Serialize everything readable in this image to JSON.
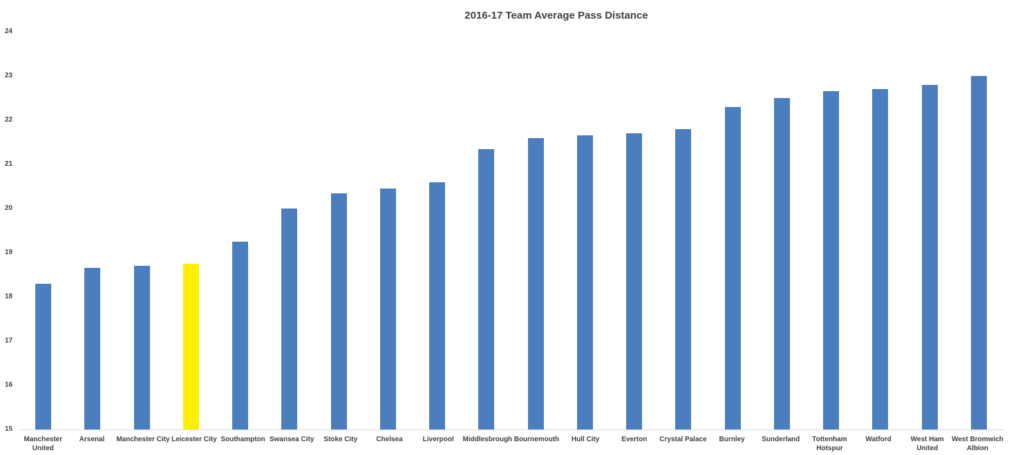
{
  "chart_data": {
    "type": "bar",
    "title": "2016-17 Team Average Pass Distance",
    "xlabel": "",
    "ylabel": "",
    "ylim": [
      15,
      24
    ],
    "yticks": [
      15,
      16,
      17,
      18,
      19,
      20,
      21,
      22,
      23,
      24
    ],
    "grid": false,
    "legend": false,
    "categories": [
      "Manchester\nUnited",
      "Arsenal",
      "Manchester City",
      "Leicester City",
      "Southampton",
      "Swansea City",
      "Stoke City",
      "Chelsea",
      "Liverpool",
      "Middlesbrough",
      "Bournemouth",
      "Hull City",
      "Everton",
      "Crystal Palace",
      "Burnley",
      "Sunderland",
      "Tottenham\nHotspur",
      "Watford",
      "West Ham\nUnited",
      "West Bromwich\nAlbion"
    ],
    "values": [
      18.3,
      18.65,
      18.7,
      18.75,
      19.25,
      20.0,
      20.35,
      20.45,
      20.6,
      21.35,
      21.6,
      21.65,
      21.7,
      21.8,
      22.3,
      22.5,
      22.65,
      22.7,
      22.8,
      23.0
    ],
    "highlighted_category": "Leicester City",
    "highlight_index": 3,
    "colors": {
      "bar": "#4b7ebe",
      "highlight": "#fff000",
      "axis_line": "#d9d9d9",
      "text": "#404040",
      "title_text": "#3f3f3f",
      "background": "#ffffff"
    }
  }
}
